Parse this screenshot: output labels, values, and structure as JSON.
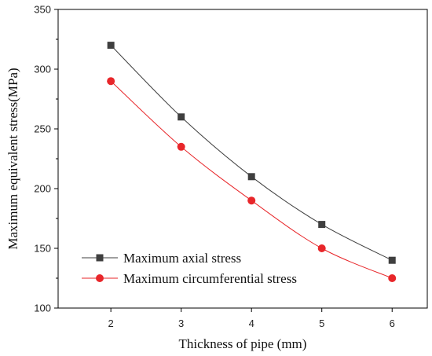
{
  "chart_data": {
    "type": "line",
    "title": "",
    "xlabel": "Thickness of pipe (mm)",
    "ylabel": "Maximum equivalent stress(MPa)",
    "x": [
      2,
      3,
      4,
      5,
      6
    ],
    "xlim": [
      1.25,
      6.5
    ],
    "ylim": [
      100,
      350
    ],
    "xticks": [
      2,
      3,
      4,
      5,
      6
    ],
    "yticks": [
      100,
      150,
      200,
      250,
      300,
      350
    ],
    "grid": false,
    "legend_position": "bottom-left",
    "series": [
      {
        "name": "Maximum axial stress",
        "values": [
          320,
          260,
          210,
          170,
          140
        ],
        "color": "#3f3f3f",
        "marker": "square"
      },
      {
        "name": "Maximum circumferential stress",
        "values": [
          290,
          235,
          190,
          150,
          125
        ],
        "color": "#e8262a",
        "marker": "circle"
      }
    ]
  }
}
